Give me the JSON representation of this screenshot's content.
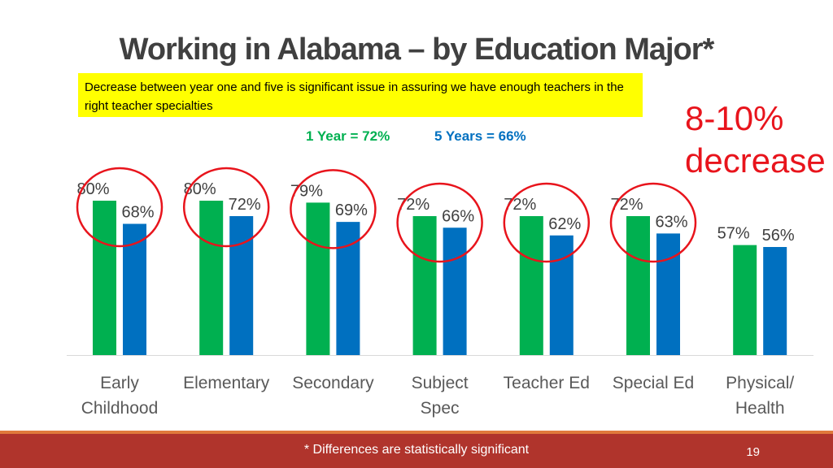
{
  "slide": {
    "title": "Working in Alabama –  by Education Major*",
    "note": "Decrease between year one and five is significant issue in assuring we have enough teachers in the right teacher specialties",
    "callout_line1": "8-10%",
    "callout_line2": "decrease",
    "summary_1year": "1 Year = 72%",
    "summary_5year": "5 Years = 66%",
    "footnote": "* Differences are statistically significant",
    "page_number": "19"
  },
  "colors": {
    "year1": "#00b050",
    "year5": "#0070c0",
    "highlight": "#e8141c"
  },
  "chart_data": {
    "type": "bar",
    "title": "",
    "xlabel": "",
    "ylabel": "",
    "ylim": [
      0,
      100
    ],
    "grid": false,
    "legend": "none",
    "categories": [
      [
        "Early",
        "Childhood"
      ],
      [
        "Elementary"
      ],
      [
        "Secondary"
      ],
      [
        "Subject",
        "Spec"
      ],
      [
        "Teacher Ed"
      ],
      [
        "Special Ed"
      ],
      [
        "Physical/",
        "Health"
      ]
    ],
    "series": [
      {
        "values": [
          80,
          80,
          79,
          72,
          72,
          72,
          57
        ],
        "labels": [
          "80%",
          "80%",
          "79%",
          "72%",
          "72%",
          "72%",
          "57%"
        ],
        "color": "#00b050"
      },
      {
        "values": [
          68,
          72,
          69,
          66,
          62,
          63,
          56
        ],
        "labels": [
          "68%",
          "72%",
          "69%",
          "66%",
          "62%",
          "63%",
          "56%"
        ],
        "color": "#0070c0"
      }
    ],
    "circled_categories": [
      0,
      1,
      2,
      3,
      4,
      5
    ]
  }
}
